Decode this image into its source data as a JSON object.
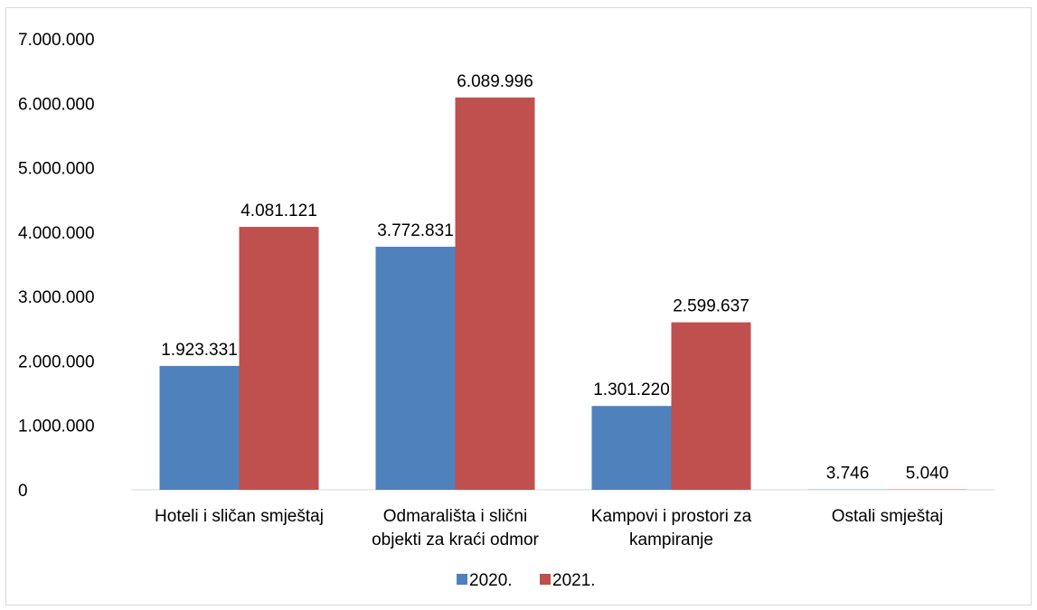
{
  "chart_data": {
    "type": "bar",
    "categories": [
      [
        "Hoteli i sličan smještaj"
      ],
      [
        "Odmarališta i slični",
        "objekti za kraći odmor"
      ],
      [
        "Kampovi i prostori za",
        "kampiranje"
      ],
      [
        "Ostali smještaj"
      ]
    ],
    "series": [
      {
        "name": "2020.",
        "color": "#4F81BD",
        "values": [
          1923331,
          3772831,
          1301220,
          3746
        ],
        "labels": [
          "1.923.331",
          "3.772.831",
          "1.301.220",
          "3.746"
        ]
      },
      {
        "name": "2021.",
        "color": "#C0504D",
        "values": [
          4081121,
          6089996,
          2599637,
          5040
        ],
        "labels": [
          "4.081.121",
          "6.089.996",
          "2.599.637",
          "5.040"
        ]
      }
    ],
    "ylim": [
      0,
      7000000
    ],
    "yticks": [
      0,
      1000000,
      2000000,
      3000000,
      4000000,
      5000000,
      6000000,
      7000000
    ],
    "ytick_labels": [
      "0",
      "1.000.000",
      "2.000.000",
      "3.000.000",
      "4.000.000",
      "5.000.000",
      "6.000.000",
      "7.000.000"
    ],
    "grid": false,
    "legend_position": "bottom"
  }
}
